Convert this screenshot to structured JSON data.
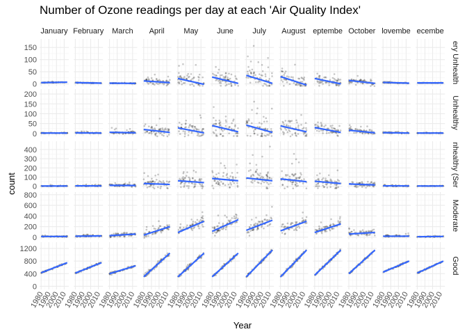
{
  "chart_data": {
    "type": "scatter",
    "title": "Number of Ozone readings per day at each 'Air Quality Index'",
    "xlabel": "Year",
    "ylabel": "count",
    "x_ticks": [
      "1980",
      "1990",
      "2000",
      "2010"
    ],
    "xlim": [
      1978,
      2016
    ],
    "columns": [
      "January",
      "February",
      "March",
      "April",
      "May",
      "June",
      "July",
      "August",
      "September",
      "October",
      "November",
      "December"
    ],
    "rows": [
      {
        "label": "Very Unhealthy",
        "ylim": [
          -10,
          185
        ],
        "y_ticks": [
          0,
          50,
          100,
          150
        ],
        "trend": [
          [
            5,
            7
          ],
          [
            5,
            3
          ],
          [
            3,
            2
          ],
          [
            12,
            5
          ],
          [
            22,
            -2
          ],
          [
            28,
            2
          ],
          [
            35,
            2
          ],
          [
            30,
            -5
          ],
          [
            22,
            0
          ],
          [
            14,
            2
          ],
          [
            6,
            3
          ],
          [
            4,
            4
          ]
        ],
        "spread": [
          2,
          2,
          2,
          22,
          40,
          50,
          55,
          50,
          35,
          18,
          4,
          1
        ]
      },
      {
        "label": "Unhealthy",
        "ylim": [
          -15,
          225
        ],
        "y_ticks": [
          0,
          50,
          100,
          150,
          200
        ],
        "trend": [
          [
            2,
            2
          ],
          [
            3,
            2
          ],
          [
            6,
            3
          ],
          [
            20,
            5
          ],
          [
            28,
            3
          ],
          [
            40,
            8
          ],
          [
            42,
            5
          ],
          [
            38,
            8
          ],
          [
            30,
            5
          ],
          [
            16,
            3
          ],
          [
            4,
            2
          ],
          [
            2,
            2
          ]
        ],
        "spread": [
          3,
          5,
          10,
          40,
          60,
          90,
          90,
          70,
          50,
          25,
          5,
          2
        ]
      },
      {
        "label": "Unhealthy (Sensitive)",
        "ylim": [
          -25,
          490
        ],
        "y_ticks": [
          0,
          100,
          200,
          300,
          400
        ],
        "trend": [
          [
            3,
            3
          ],
          [
            5,
            4
          ],
          [
            10,
            8
          ],
          [
            30,
            20
          ],
          [
            60,
            40
          ],
          [
            85,
            60
          ],
          [
            90,
            60
          ],
          [
            80,
            50
          ],
          [
            55,
            30
          ],
          [
            25,
            15
          ],
          [
            5,
            4
          ],
          [
            3,
            3
          ]
        ],
        "spread": [
          5,
          10,
          25,
          80,
          140,
          170,
          170,
          150,
          110,
          50,
          10,
          4
        ]
      },
      {
        "label": "Moderate",
        "ylim": [
          -40,
          850
        ],
        "y_ticks": [
          0,
          200,
          400,
          600,
          800
        ],
        "trend": [
          [
            15,
            15
          ],
          [
            20,
            25
          ],
          [
            30,
            60
          ],
          [
            40,
            200
          ],
          [
            90,
            300
          ],
          [
            110,
            330
          ],
          [
            130,
            320
          ],
          [
            120,
            300
          ],
          [
            90,
            250
          ],
          [
            60,
            90
          ],
          [
            20,
            20
          ],
          [
            10,
            15
          ]
        ],
        "spread": [
          15,
          25,
          60,
          120,
          160,
          170,
          160,
          150,
          120,
          80,
          25,
          10
        ]
      },
      {
        "label": "Good",
        "ylim": [
          -100,
          1400
        ],
        "y_ticks": [
          0,
          400,
          800,
          1200
        ],
        "trend": [
          [
            430,
            750
          ],
          [
            420,
            750
          ],
          [
            400,
            650
          ],
          [
            300,
            1050
          ],
          [
            300,
            1050
          ],
          [
            300,
            1050
          ],
          [
            300,
            1150
          ],
          [
            300,
            1150
          ],
          [
            350,
            1150
          ],
          [
            400,
            1150
          ],
          [
            450,
            800
          ],
          [
            420,
            800
          ]
        ],
        "spread": [
          40,
          50,
          70,
          120,
          120,
          100,
          90,
          90,
          80,
          60,
          40,
          40
        ]
      }
    ],
    "strip_labels": {
      "columns": [
        "January",
        "February",
        "March",
        "April",
        "May",
        "June",
        "July",
        "August",
        "eptembe",
        "October",
        "lovembe",
        "ecembe"
      ],
      "rows": [
        "ery Unhealth",
        "Unhealthy",
        "nhealthy (Ser",
        "Moderate",
        "Good"
      ]
    },
    "colors": {
      "point": "#000000",
      "trend_line": "#3366ff",
      "panel_bg": "#ffffff",
      "grid_major": "#ebebeb",
      "grid_minor": "#f5f5f5"
    },
    "grid": true,
    "legend": "none"
  }
}
